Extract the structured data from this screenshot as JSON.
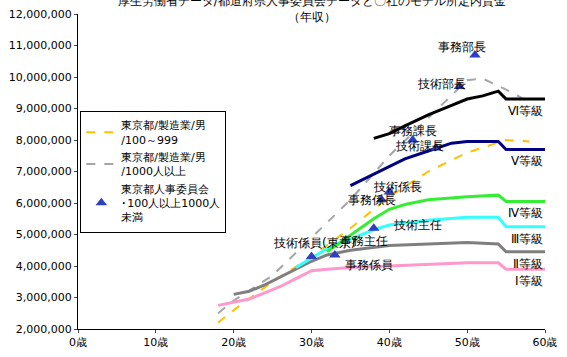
{
  "chart_data": {
    "type": "line",
    "title": "厚生労働省データ/都道府県人事委員会データと〇社のモデル所定内賃金",
    "subtitle": "（年収）",
    "xlim": [
      0,
      60
    ],
    "xticks": [
      {
        "value": 0,
        "label": "0歳"
      },
      {
        "value": 10,
        "label": "10歳"
      },
      {
        "value": 20,
        "label": "20歳"
      },
      {
        "value": 30,
        "label": "30歳"
      },
      {
        "value": 40,
        "label": "40歳"
      },
      {
        "value": 50,
        "label": "50歳"
      },
      {
        "value": 60,
        "label": "60歳"
      }
    ],
    "ylim": [
      2000000,
      12000000
    ],
    "yticks": [
      {
        "value": 2000000,
        "label": "2,000,000"
      },
      {
        "value": 3000000,
        "label": "3,000,000"
      },
      {
        "value": 4000000,
        "label": "4,000,000"
      },
      {
        "value": 5000000,
        "label": "5,000,000"
      },
      {
        "value": 6000000,
        "label": "6,000,000"
      },
      {
        "value": 7000000,
        "label": "7,000,000"
      },
      {
        "value": 8000000,
        "label": "8,000,000"
      },
      {
        "value": 9000000,
        "label": "9,000,000"
      },
      {
        "value": 10000000,
        "label": "10,000,000"
      },
      {
        "value": 11000000,
        "label": "11,000,000"
      },
      {
        "value": 12000000,
        "label": "12,000,000"
      }
    ],
    "grid": false,
    "legend": "left",
    "series": [
      {
        "name": "東京都/製造業/男/100～999",
        "type": "line",
        "line_style": "dashed",
        "color": "#ffc000",
        "x": [
          18,
          20,
          25,
          30,
          35,
          40,
          45,
          50,
          55,
          58
        ],
        "values": [
          2200000,
          2600000,
          3500000,
          4300000,
          5200000,
          6200000,
          7000000,
          7600000,
          8000000,
          7950000
        ]
      },
      {
        "name": "東京都/製造業/男/1000人以上",
        "type": "line",
        "line_style": "dashed",
        "color": "#a6a6a6",
        "x": [
          18,
          20,
          25,
          30,
          35,
          40,
          45,
          50,
          52,
          55,
          58
        ],
        "values": [
          2500000,
          2900000,
          3700000,
          4900000,
          6100000,
          7500000,
          8700000,
          9900000,
          9950000,
          9600000,
          9200000
        ]
      },
      {
        "name": "東京都人事委員会･100人以上1000人未満",
        "type": "scatter",
        "marker": "triangle",
        "color": "#2e3fbf",
        "x": [
          30,
          33,
          38,
          39,
          40,
          43,
          46,
          49,
          51
        ],
        "values": [
          4300000,
          4350000,
          5200000,
          6100000,
          6350000,
          8000000,
          7750000,
          9700000,
          10700000
        ]
      },
      {
        "name": "Ⅰ等級",
        "type": "line",
        "line_style": "solid",
        "color": "#ff99cc",
        "x": [
          18,
          20,
          22,
          24,
          26,
          28,
          30,
          32,
          35,
          40,
          45,
          50,
          54,
          55,
          60
        ],
        "values": [
          2750000,
          2850000,
          2950000,
          3150000,
          3350000,
          3600000,
          3850000,
          3900000,
          3950000,
          4000000,
          4050000,
          4100000,
          4100000,
          3900000,
          3900000
        ]
      },
      {
        "name": "Ⅱ等級",
        "type": "line",
        "line_style": "solid",
        "color": "#7f7f7f",
        "x": [
          20,
          22,
          24,
          26,
          28,
          30,
          32,
          35,
          40,
          45,
          50,
          54,
          55,
          60
        ],
        "values": [
          3100000,
          3200000,
          3400000,
          3650000,
          3900000,
          4150000,
          4350000,
          4500000,
          4650000,
          4700000,
          4750000,
          4700000,
          4450000,
          4450000
        ]
      },
      {
        "name": "Ⅲ等級",
        "type": "line",
        "line_style": "solid",
        "color": "#33ffff",
        "x": [
          28,
          30,
          32,
          34,
          36,
          38,
          40,
          45,
          50,
          54,
          55,
          60
        ],
        "values": [
          3950000,
          4250000,
          4550000,
          4750000,
          4950000,
          5150000,
          5300000,
          5450000,
          5550000,
          5550000,
          5250000,
          5250000
        ]
      },
      {
        "name": "Ⅳ等級",
        "type": "line",
        "line_style": "solid",
        "color": "#33ee33",
        "x": [
          32,
          34,
          36,
          38,
          40,
          42,
          45,
          50,
          54,
          55,
          60
        ],
        "values": [
          4450000,
          4800000,
          5150000,
          5500000,
          5800000,
          5950000,
          6100000,
          6200000,
          6250000,
          6050000,
          6050000
        ]
      },
      {
        "name": "Ⅴ等級",
        "type": "line",
        "line_style": "solid",
        "color": "#000080",
        "x": [
          35,
          37,
          40,
          42,
          45,
          48,
          50,
          54,
          55,
          60
        ],
        "values": [
          6550000,
          6800000,
          7150000,
          7400000,
          7650000,
          7900000,
          7950000,
          7950000,
          7700000,
          7700000
        ]
      },
      {
        "name": "Ⅵ等級",
        "type": "line",
        "line_style": "solid",
        "color": "#000000",
        "x": [
          38,
          40,
          42,
          45,
          48,
          50,
          52,
          54,
          55,
          60
        ],
        "values": [
          8050000,
          8200000,
          8450000,
          8800000,
          9100000,
          9300000,
          9400000,
          9550000,
          9300000,
          9300000
        ]
      }
    ],
    "annotations": [
      {
        "text": "事務部長",
        "x": 49.3,
        "y": 10960000
      },
      {
        "text": "技術部長",
        "x": 46.7,
        "y": 9770000
      },
      {
        "text": "事務課長",
        "x": 43,
        "y": 8300000
      },
      {
        "text": "技術課長",
        "x": 43.9,
        "y": 7800000
      },
      {
        "text": "技術係長",
        "x": 41,
        "y": 6500000
      },
      {
        "text": "事務係長",
        "x": 37.8,
        "y": 6100000
      },
      {
        "text": "技術主任",
        "x": 43.6,
        "y": 5300000
      },
      {
        "text": "技術係員(東京)",
        "x": 30.3,
        "y": 4740000
      },
      {
        "text": "事務主任",
        "x": 36.8,
        "y": 4800000
      },
      {
        "text": "事務係員",
        "x": 37.4,
        "y": 4040000
      }
    ]
  }
}
